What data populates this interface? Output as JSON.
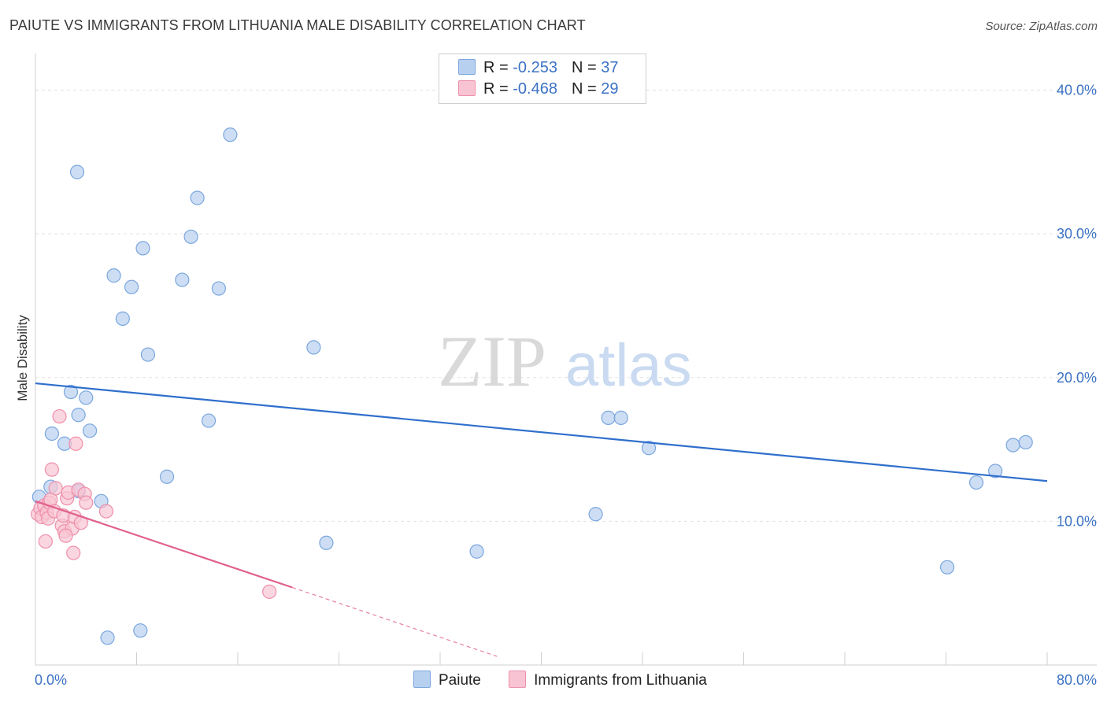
{
  "header": {
    "title": "PAIUTE VS IMMIGRANTS FROM LITHUANIA MALE DISABILITY CORRELATION CHART",
    "source": "Source: ZipAtlas.com"
  },
  "legend_top": {
    "rows": [
      {
        "r_label": "R =",
        "r_value": "-0.253",
        "n_label": "N =",
        "n_value": "37"
      },
      {
        "r_label": "R =",
        "r_value": "-0.468",
        "n_label": "N =",
        "n_value": "29"
      }
    ]
  },
  "legend_bottom": {
    "items": [
      {
        "label": "Paiute"
      },
      {
        "label": "Immigrants from Lithuania"
      }
    ]
  },
  "watermark": {
    "zip": "ZIP",
    "atlas": "atlas"
  },
  "colors": {
    "paiute_fill": "#b8d0f0",
    "paiute_stroke": "#7aa6de",
    "paiute_line": "#2f6fcc",
    "lithuania_fill": "#f8c4d3",
    "lithuania_stroke": "#ee8fab",
    "lithuania_line": "#e0608c",
    "tick_text": "#3b72c4",
    "grid": "#e2e2e2"
  },
  "chart_data": {
    "type": "scatter",
    "title": "PAIUTE VS IMMIGRANTS FROM LITHUANIA MALE DISABILITY CORRELATION CHART",
    "xlabel": "",
    "ylabel": "Male Disability",
    "xlim": [
      0,
      80
    ],
    "ylim": [
      0,
      42
    ],
    "x_tick_labels": [
      "0.0%",
      "80.0%"
    ],
    "y_ticks": [
      10,
      20,
      30,
      40
    ],
    "y_tick_labels": [
      "10.0%",
      "20.0%",
      "30.0%",
      "40.0%"
    ],
    "series": [
      {
        "name": "Paiute",
        "r": -0.253,
        "n": 37,
        "points": [
          [
            0.3,
            11.7
          ],
          [
            1.3,
            16.1
          ],
          [
            1.2,
            12.4
          ],
          [
            2.3,
            15.4
          ],
          [
            2.8,
            19.0
          ],
          [
            3.4,
            12.1
          ],
          [
            4.0,
            18.6
          ],
          [
            3.4,
            17.4
          ],
          [
            3.3,
            34.3
          ],
          [
            4.3,
            16.3
          ],
          [
            5.2,
            11.4
          ],
          [
            5.7,
            1.9
          ],
          [
            6.2,
            27.1
          ],
          [
            6.9,
            24.1
          ],
          [
            7.6,
            26.3
          ],
          [
            8.5,
            29.0
          ],
          [
            8.3,
            2.4
          ],
          [
            8.9,
            21.6
          ],
          [
            10.4,
            13.1
          ],
          [
            11.6,
            26.8
          ],
          [
            12.3,
            29.8
          ],
          [
            12.8,
            32.5
          ],
          [
            13.7,
            17.0
          ],
          [
            14.5,
            26.2
          ],
          [
            15.4,
            36.9
          ],
          [
            22.0,
            22.1
          ],
          [
            23.0,
            8.5
          ],
          [
            34.9,
            7.9
          ],
          [
            44.3,
            10.5
          ],
          [
            45.3,
            17.2
          ],
          [
            46.3,
            17.2
          ],
          [
            48.5,
            15.1
          ],
          [
            72.1,
            6.8
          ],
          [
            74.4,
            12.7
          ],
          [
            75.9,
            13.5
          ],
          [
            77.3,
            15.3
          ],
          [
            78.3,
            15.5
          ]
        ],
        "trend": {
          "x": [
            0,
            80
          ],
          "y": [
            19.6,
            12.8
          ]
        }
      },
      {
        "name": "Immigrants from Lithuania",
        "r": -0.468,
        "n": 29,
        "points": [
          [
            0.2,
            10.5
          ],
          [
            0.4,
            10.9
          ],
          [
            0.5,
            10.3
          ],
          [
            0.7,
            11.1
          ],
          [
            0.9,
            10.6
          ],
          [
            1.0,
            10.2
          ],
          [
            1.1,
            11.3
          ],
          [
            1.2,
            11.5
          ],
          [
            1.3,
            13.6
          ],
          [
            1.5,
            10.7
          ],
          [
            1.6,
            12.3
          ],
          [
            1.9,
            17.3
          ],
          [
            2.1,
            9.7
          ],
          [
            2.2,
            10.4
          ],
          [
            2.3,
            9.3
          ],
          [
            2.5,
            11.6
          ],
          [
            2.6,
            12.0
          ],
          [
            2.9,
            9.5
          ],
          [
            3.1,
            10.3
          ],
          [
            3.2,
            15.4
          ],
          [
            3.4,
            12.2
          ],
          [
            3.6,
            9.9
          ],
          [
            3.9,
            11.9
          ],
          [
            0.8,
            8.6
          ],
          [
            2.4,
            9.0
          ],
          [
            3.0,
            7.8
          ],
          [
            4.0,
            11.3
          ],
          [
            5.6,
            10.7
          ],
          [
            18.5,
            5.1
          ]
        ],
        "trend": {
          "x": [
            0,
            20.3
          ],
          "y": [
            11.4,
            5.4
          ]
        },
        "trend_dashed": {
          "x": [
            20.3,
            36.5
          ],
          "y": [
            5.4,
            0.6
          ]
        }
      }
    ]
  }
}
